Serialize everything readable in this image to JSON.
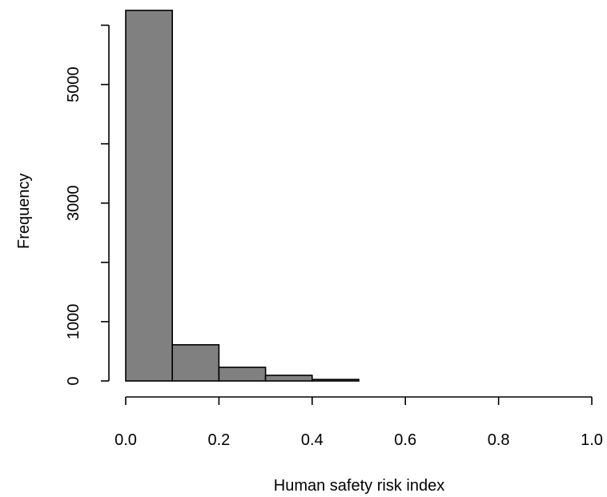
{
  "chart_data": {
    "type": "bar",
    "title": "",
    "xlabel": "Human safety risk index",
    "ylabel": "Frequency",
    "bins": [
      {
        "from": 0.0,
        "to": 0.1,
        "count": 6250
      },
      {
        "from": 0.1,
        "to": 0.2,
        "count": 610
      },
      {
        "from": 0.2,
        "to": 0.3,
        "count": 230
      },
      {
        "from": 0.3,
        "to": 0.4,
        "count": 95
      },
      {
        "from": 0.4,
        "to": 0.5,
        "count": 25
      },
      {
        "from": 0.5,
        "to": 0.6,
        "count": 0
      },
      {
        "from": 0.6,
        "to": 0.7,
        "count": 0
      },
      {
        "from": 0.7,
        "to": 0.8,
        "count": 0
      },
      {
        "from": 0.8,
        "to": 0.9,
        "count": 0
      },
      {
        "from": 0.9,
        "to": 1.0,
        "count": 0
      }
    ],
    "xlim": [
      0,
      1.0
    ],
    "ylim": [
      0,
      6250
    ],
    "x_ticks": [
      "0.0",
      "0.2",
      "0.4",
      "0.6",
      "0.8",
      "1.0"
    ],
    "y_ticks": [
      "0",
      "1000",
      "3000",
      "5000"
    ],
    "bar_color": "#808080",
    "grid": false,
    "legend": "none"
  }
}
